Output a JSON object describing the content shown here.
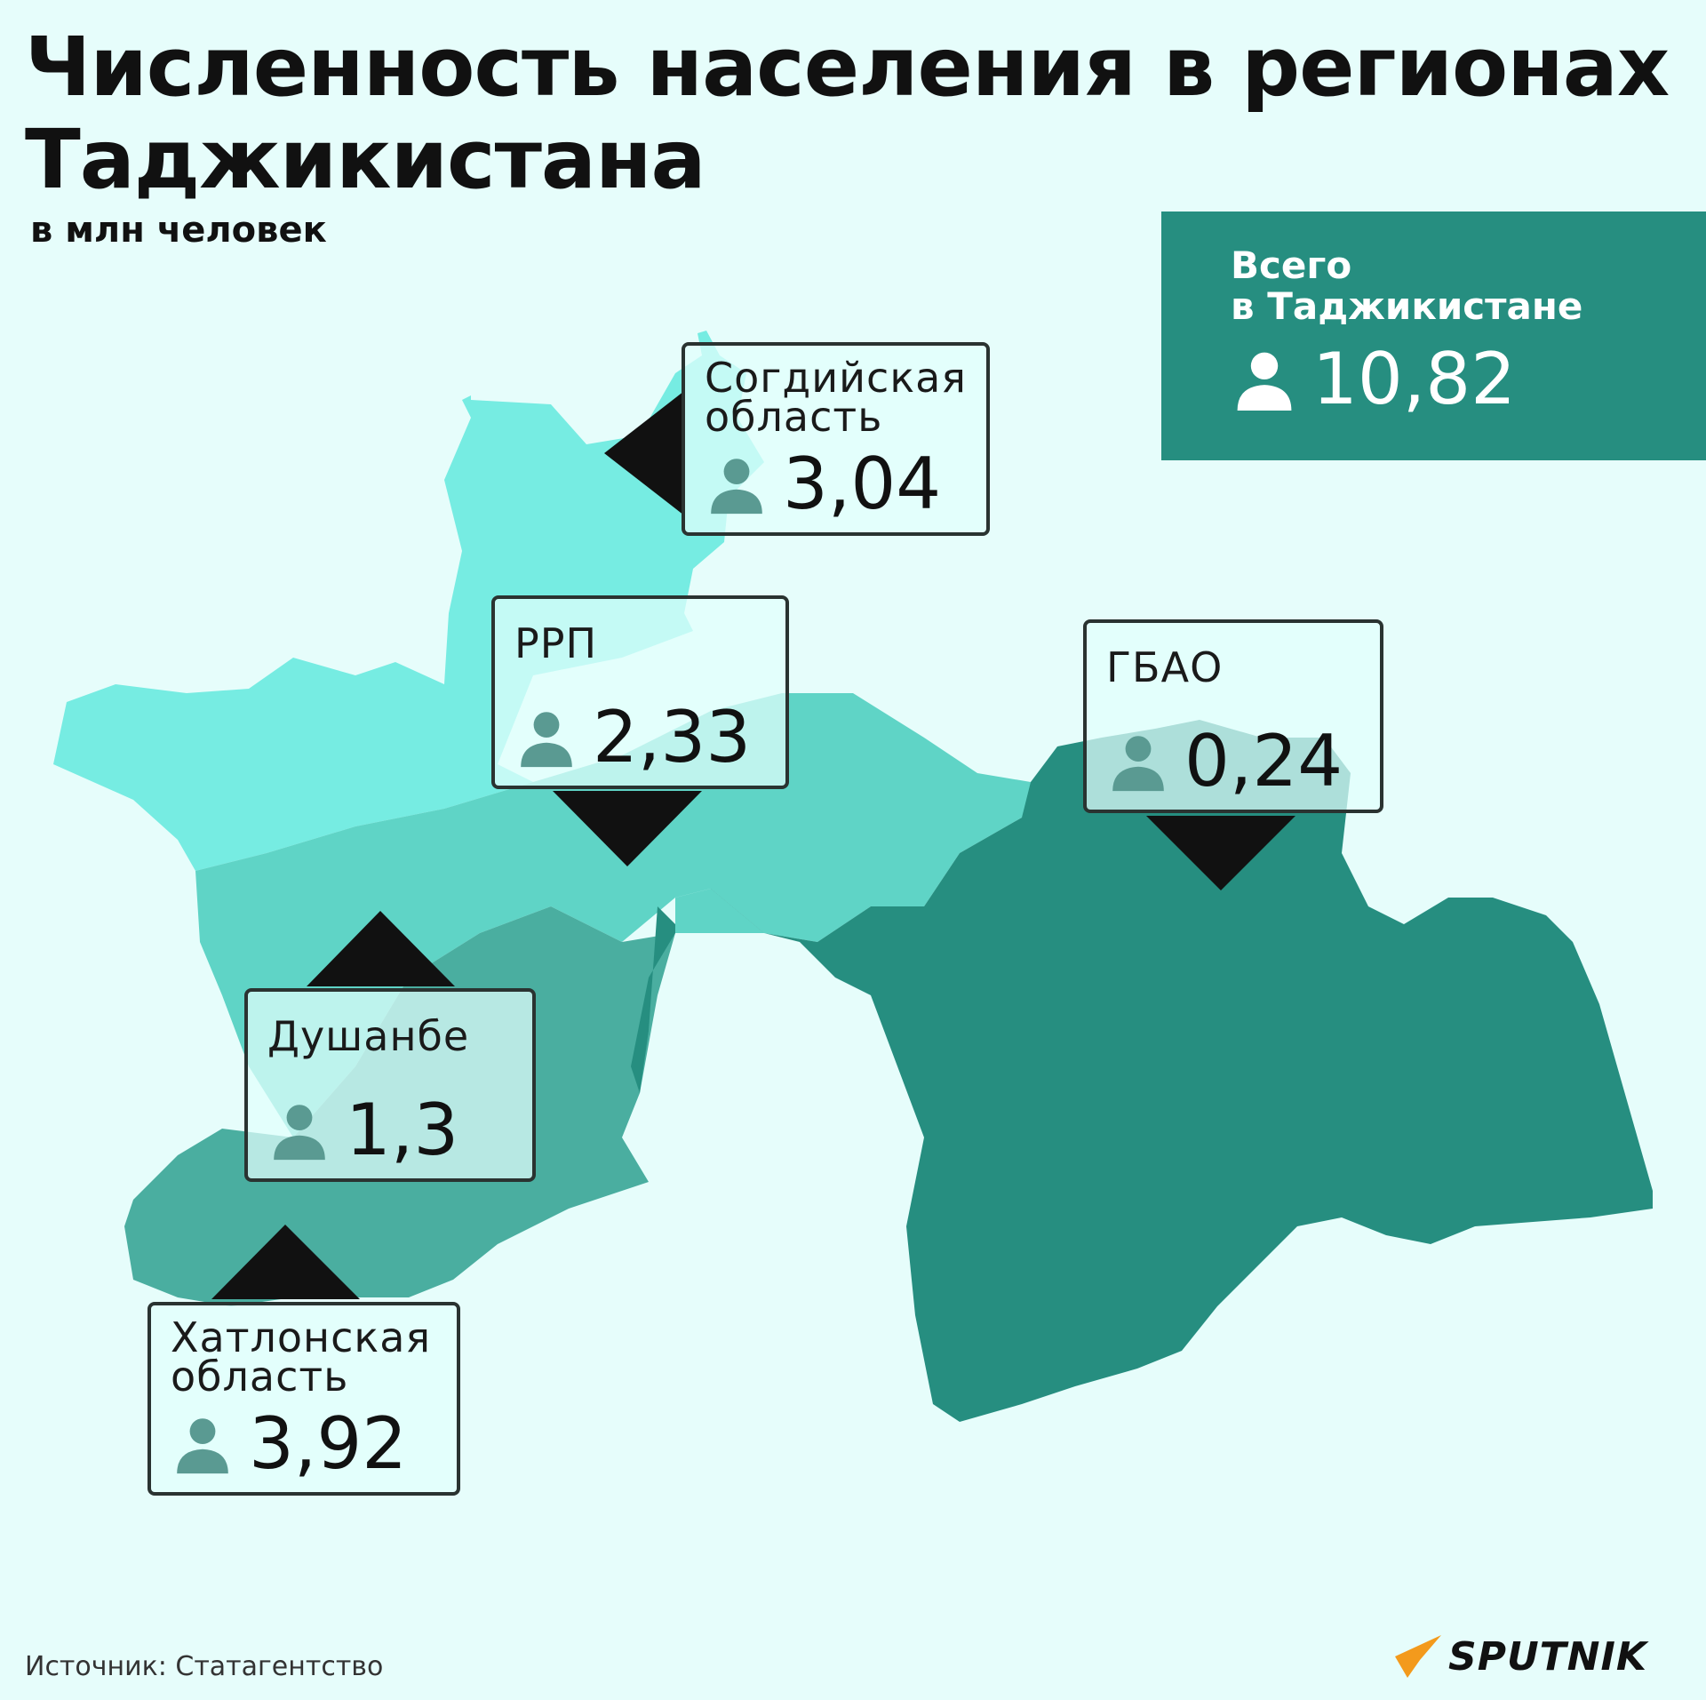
{
  "header": {
    "title_line1": "Численность населения в регионах",
    "title_line2": "Таджикистана",
    "subtitle": "в млн человек"
  },
  "total": {
    "label": "Всего\nв Таджикистане",
    "value": "10,82"
  },
  "regions": [
    {
      "name": "Согдийская\nобласть",
      "value": "3,04"
    },
    {
      "name": "РРП",
      "value": "2,33"
    },
    {
      "name": "ГБАО",
      "value": "0,24"
    },
    {
      "name": "Душанбе",
      "value": "1,3"
    },
    {
      "name": "Хатлонская\nобласть",
      "value": "3,92"
    }
  ],
  "colors": {
    "background": "#e6fdfb",
    "sughd": "#76ece2",
    "rrp": "#5fd4c6",
    "khatlon": "#4aaea0",
    "gbao": "#268e80",
    "total_box": "#268e80"
  },
  "icon": "person-icon",
  "footer": {
    "source": "Источник: Статагентство",
    "logo": "SPUTNIK"
  }
}
